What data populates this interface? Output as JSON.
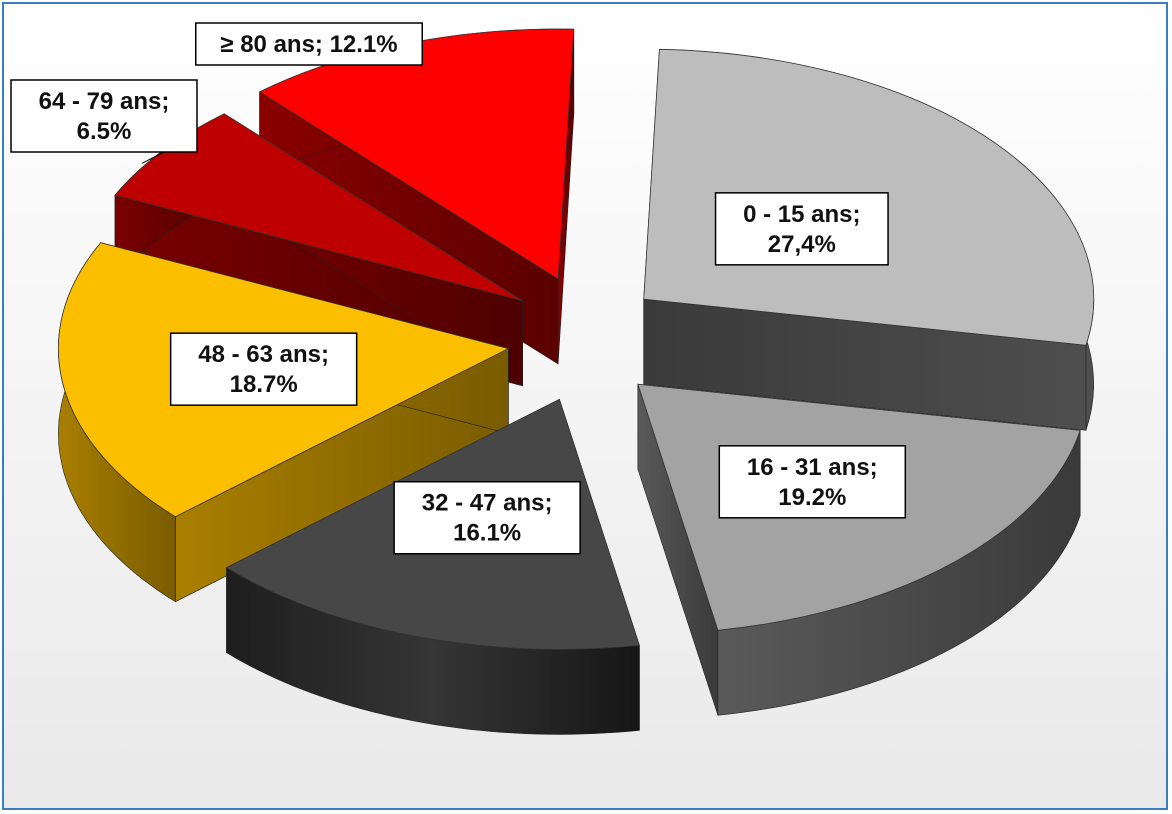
{
  "chart_data": {
    "type": "pie",
    "variant": "3d-exploded",
    "title": "",
    "slices": [
      {
        "label_line1": "0 - 15 ans;",
        "label_line2": "27,4%",
        "value": 27.4,
        "color": "#bdbdbd"
      },
      {
        "label_line1": "16 - 31 ans;",
        "label_line2": "19.2%",
        "value": 19.2,
        "color": "#a3a3a3"
      },
      {
        "label_line1": "32 - 47 ans;",
        "label_line2": "16.1%",
        "value": 16.1,
        "color": "#474747"
      },
      {
        "label_line1": "48 - 63 ans;",
        "label_line2": "18.7%",
        "value": 18.7,
        "color": "#fbbf00"
      },
      {
        "label_line1": "64 - 79 ans;",
        "label_line2": "6.5%",
        "value": 6.5,
        "color": "#bf0000"
      },
      {
        "label_line1": "≥ 80 ans; 12.1%",
        "label_line2": "",
        "value": 12.1,
        "color": "#ff0000"
      }
    ],
    "legend": "none"
  },
  "frame": {
    "border_color": "#3a7ec1"
  }
}
